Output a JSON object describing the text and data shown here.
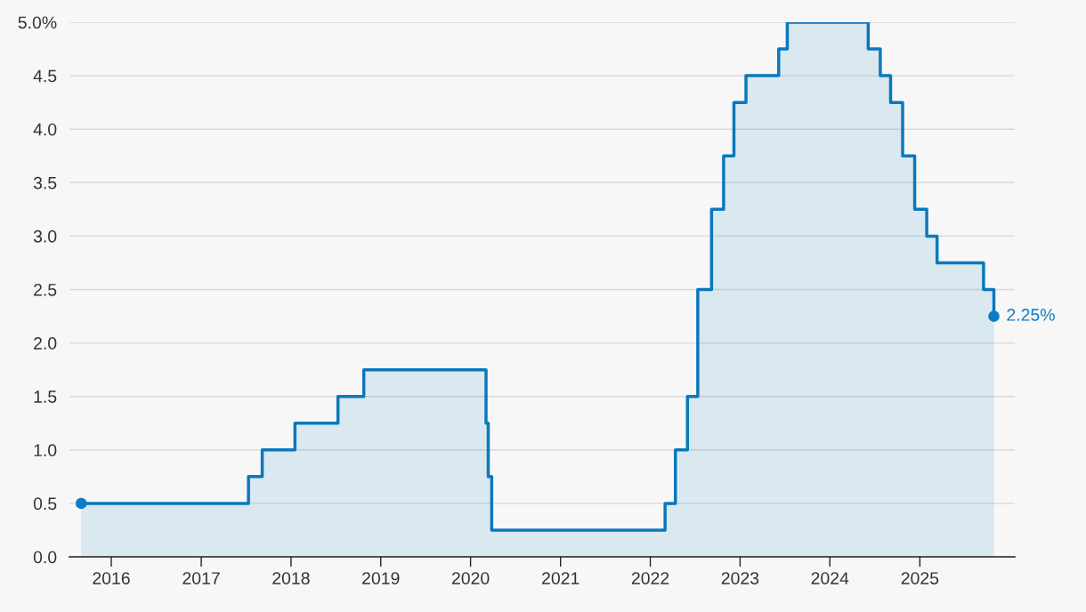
{
  "chart_data": {
    "type": "area",
    "series": [
      {
        "color": "#0a78bd",
        "x": [
          "2015-09-01",
          "2017-07-12",
          "2017-07-12",
          "2017-09-06",
          "2017-09-06",
          "2018-01-17",
          "2018-01-17",
          "2018-07-11",
          "2018-07-11",
          "2018-10-24",
          "2018-10-24",
          "2020-03-04",
          "2020-03-04",
          "2020-03-13",
          "2020-03-13",
          "2020-03-27",
          "2020-03-27",
          "2022-03-02",
          "2022-03-02",
          "2022-04-13",
          "2022-04-13",
          "2022-06-01",
          "2022-06-01",
          "2022-07-13",
          "2022-07-13",
          "2022-09-07",
          "2022-09-07",
          "2022-10-26",
          "2022-10-26",
          "2022-12-07",
          "2022-12-07",
          "2023-01-25",
          "2023-01-25",
          "2023-06-07",
          "2023-06-07",
          "2023-07-12",
          "2023-07-12",
          "2024-06-05",
          "2024-06-05",
          "2024-07-24",
          "2024-07-24",
          "2024-09-04",
          "2024-09-04",
          "2024-10-23",
          "2024-10-23",
          "2024-12-11",
          "2024-12-11",
          "2025-01-29",
          "2025-01-29",
          "2025-03-12",
          "2025-03-12",
          "2025-09-17",
          "2025-09-17",
          "2025-10-29",
          "2025-10-29"
        ],
        "values": [
          0.5,
          0.5,
          0.75,
          0.75,
          1.0,
          1.0,
          1.25,
          1.25,
          1.5,
          1.5,
          1.75,
          1.75,
          1.25,
          1.25,
          0.75,
          0.75,
          0.25,
          0.25,
          0.5,
          0.5,
          1.0,
          1.0,
          1.5,
          1.5,
          2.5,
          2.5,
          3.25,
          3.25,
          3.75,
          3.75,
          4.25,
          4.25,
          4.5,
          4.5,
          4.75,
          4.75,
          5.0,
          5.0,
          4.75,
          4.75,
          4.5,
          4.5,
          4.25,
          4.25,
          3.75,
          3.75,
          3.25,
          3.25,
          3.0,
          3.0,
          2.75,
          2.75,
          2.5,
          2.5,
          2.25
        ]
      },
      {
        "type": "scatter",
        "color": "#0d7cc2",
        "marker": "circle",
        "x": [
          "2015-09-01",
          "2025-10-29"
        ],
        "values": [
          0.5,
          2.25
        ]
      }
    ],
    "annotations": [
      {
        "text": "2.25%",
        "x": "2025-10-29",
        "y": 2.25
      }
    ],
    "xlim": [
      "2015-07-15",
      "2026-01-22"
    ],
    "xticks": [
      "2016",
      "2017",
      "2018",
      "2019",
      "2020",
      "2021",
      "2022",
      "2023",
      "2024",
      "2025"
    ],
    "ylim": [
      0,
      5
    ],
    "yticks": [
      {
        "value": 0,
        "label": "0.0"
      },
      {
        "value": 0.5,
        "label": "0.5"
      },
      {
        "value": 1,
        "label": "1.0"
      },
      {
        "value": 1.5,
        "label": "1.5"
      },
      {
        "value": 2,
        "label": "2.0"
      },
      {
        "value": 2.5,
        "label": "2.5"
      },
      {
        "value": 3,
        "label": "3.0"
      },
      {
        "value": 3.5,
        "label": "3.5"
      },
      {
        "value": 4,
        "label": "4.0"
      },
      {
        "value": 4.5,
        "label": "4.5"
      },
      {
        "value": 5,
        "label": "5.0%"
      }
    ],
    "grid": "y",
    "legend": false
  }
}
